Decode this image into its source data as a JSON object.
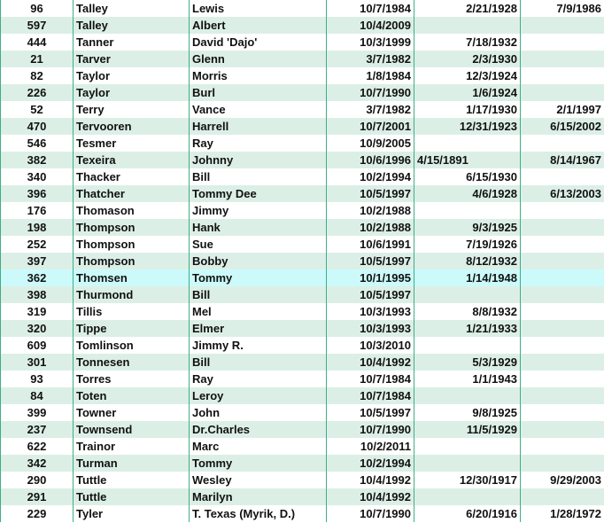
{
  "colors": {
    "stripe": "#dcefe7",
    "highlight": "#ccfafa",
    "border": "#3fae86"
  },
  "rows": [
    [
      "96",
      "Talley",
      "Lewis",
      "10/7/1984",
      "2/21/1928",
      "7/9/1986"
    ],
    [
      "597",
      "Talley",
      "Albert",
      "10/4/2009",
      "",
      ""
    ],
    [
      "444",
      "Tanner",
      "David 'Dajo'",
      "10/3/1999",
      "7/18/1932",
      ""
    ],
    [
      "21",
      "Tarver",
      "Glenn",
      "3/7/1982",
      "2/3/1930",
      ""
    ],
    [
      "82",
      "Taylor",
      "Morris",
      "1/8/1984",
      "12/3/1924",
      ""
    ],
    [
      "226",
      "Taylor",
      "Burl",
      "10/7/1990",
      "1/6/1924",
      ""
    ],
    [
      "52",
      "Terry",
      "Vance",
      "3/7/1982",
      "1/17/1930",
      "2/1/1997"
    ],
    [
      "470",
      "Tervooren",
      "Harrell",
      "10/7/2001",
      "12/31/1923",
      "6/15/2002"
    ],
    [
      "546",
      "Tesmer",
      "Ray",
      "10/9/2005",
      "",
      ""
    ],
    [
      "382",
      "Texeira",
      "Johnny",
      "10/6/1996",
      "4/15/1891",
      "8/14/1967"
    ],
    [
      "340",
      "Thacker",
      "Bill",
      "10/2/1994",
      "6/15/1930",
      ""
    ],
    [
      "396",
      "Thatcher",
      "Tommy Dee",
      "10/5/1997",
      "4/6/1928",
      "6/13/2003"
    ],
    [
      "176",
      "Thomason",
      "Jimmy",
      "10/2/1988",
      "",
      ""
    ],
    [
      "198",
      "Thompson",
      "Hank",
      "10/2/1988",
      "9/3/1925",
      ""
    ],
    [
      "252",
      "Thompson",
      "Sue",
      "10/6/1991",
      "7/19/1926",
      ""
    ],
    [
      "397",
      "Thompson",
      "Bobby",
      "10/5/1997",
      "8/12/1932",
      ""
    ],
    [
      "362",
      "Thomsen",
      "Tommy",
      "10/1/1995",
      "1/14/1948",
      ""
    ],
    [
      "398",
      "Thurmond",
      "Bill",
      "10/5/1997",
      "",
      ""
    ],
    [
      "319",
      "Tillis",
      "Mel",
      "10/3/1993",
      "8/8/1932",
      ""
    ],
    [
      "320",
      "Tippe",
      "Elmer",
      "10/3/1993",
      "1/21/1933",
      ""
    ],
    [
      "609",
      "Tomlinson",
      "Jimmy R.",
      "10/3/2010",
      "",
      ""
    ],
    [
      "301",
      "Tonnesen",
      "Bill",
      "10/4/1992",
      "5/3/1929",
      ""
    ],
    [
      "93",
      "Torres",
      "Ray",
      "10/7/1984",
      "1/1/1943",
      ""
    ],
    [
      "84",
      "Toten",
      "Leroy",
      "10/7/1984",
      "",
      ""
    ],
    [
      "399",
      "Towner",
      "John",
      "10/5/1997",
      "9/8/1925",
      ""
    ],
    [
      "237",
      "Townsend",
      "Dr.Charles",
      "10/7/1990",
      "11/5/1929",
      ""
    ],
    [
      "622",
      "Trainor",
      "Marc",
      "10/2/2011",
      "",
      ""
    ],
    [
      "342",
      "Turman",
      "Tommy",
      "10/2/1994",
      "",
      ""
    ],
    [
      "290",
      "Tuttle",
      "Wesley",
      "10/4/1992",
      "12/30/1917",
      "9/29/2003"
    ],
    [
      "291",
      "Tuttle",
      "Marilyn",
      "10/4/1992",
      "",
      ""
    ],
    [
      "229",
      "Tyler",
      "T. Texas (Myrik, D.)",
      "10/7/1990",
      "6/20/1916",
      "1/28/1972"
    ]
  ],
  "selected_row": 16,
  "left_aligned_cells": [
    [
      9,
      4
    ]
  ]
}
